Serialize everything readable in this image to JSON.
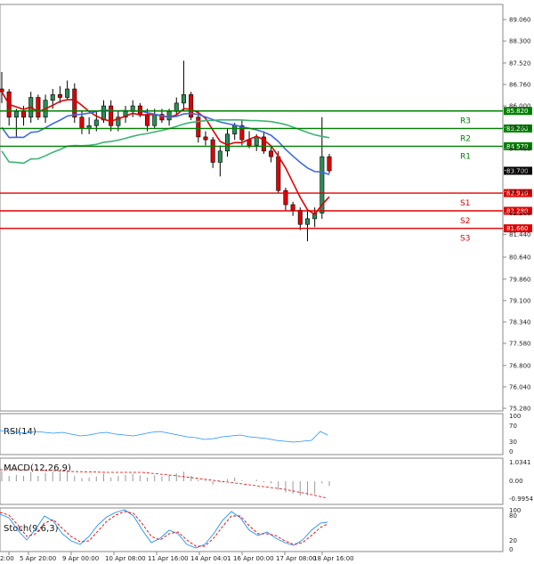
{
  "chart_data": {
    "type": "candlestick",
    "price_ticks": [
      "89.060",
      "88.300",
      "87.520",
      "86.760",
      "86.000",
      "85.240",
      "84.480",
      "83.720",
      "82.960",
      "82.200",
      "81.440",
      "80.640",
      "79.860",
      "79.100",
      "78.340",
      "77.580",
      "76.800",
      "76.040",
      "75.280"
    ],
    "price_range": [
      75.28,
      89.06
    ],
    "current_price": "83.700",
    "levels": [
      {
        "name": "R3",
        "value": 85.82,
        "label": "85.820",
        "color": "#008000"
      },
      {
        "name": "R2",
        "value": 85.2,
        "label": "85.200",
        "color": "#008000"
      },
      {
        "name": "R1",
        "value": 84.57,
        "label": "84.570",
        "color": "#008000"
      },
      {
        "name": "S1",
        "value": 82.91,
        "label": "82.910",
        "color": "#e00000"
      },
      {
        "name": "S2",
        "value": 82.28,
        "label": "82.280",
        "color": "#e00000"
      },
      {
        "name": "S3",
        "value": 81.66,
        "label": "81.660",
        "color": "#e00000"
      }
    ],
    "x_labels": [
      "2:00",
      "5 Apr 20:00",
      "9 Apr 00:00",
      "10 Apr 08:00",
      "11 Apr 16:00",
      "14 Apr 04:01",
      "16 Apr 00:00",
      "17 Apr 08:00",
      "18 Apr 16:00"
    ],
    "candles": [
      [
        86.6,
        87.2,
        86.1,
        86.5
      ],
      [
        86.5,
        86.6,
        85.3,
        85.6
      ],
      [
        85.6,
        85.9,
        84.9,
        85.8
      ],
      [
        85.8,
        86.0,
        85.3,
        85.6
      ],
      [
        85.6,
        86.5,
        85.4,
        86.3
      ],
      [
        86.3,
        86.4,
        85.5,
        85.6
      ],
      [
        85.6,
        86.4,
        85.4,
        86.2
      ],
      [
        86.2,
        86.6,
        85.9,
        86.4
      ],
      [
        86.4,
        86.7,
        86.1,
        86.3
      ],
      [
        86.3,
        86.9,
        86.2,
        86.6
      ],
      [
        86.6,
        86.8,
        85.4,
        85.6
      ],
      [
        85.6,
        85.8,
        85.0,
        85.2
      ],
      [
        85.2,
        85.6,
        85.0,
        85.3
      ],
      [
        85.3,
        85.8,
        85.1,
        85.5
      ],
      [
        85.5,
        86.2,
        85.4,
        86.0
      ],
      [
        86.0,
        86.2,
        85.1,
        85.3
      ],
      [
        85.3,
        85.8,
        85.1,
        85.6
      ],
      [
        85.6,
        86.0,
        85.4,
        85.8
      ],
      [
        85.8,
        86.2,
        85.6,
        86.0
      ],
      [
        86.0,
        86.1,
        85.6,
        85.7
      ],
      [
        85.7,
        85.9,
        85.1,
        85.3
      ],
      [
        85.3,
        85.9,
        85.2,
        85.7
      ],
      [
        85.7,
        85.9,
        85.4,
        85.5
      ],
      [
        85.5,
        85.9,
        85.3,
        85.8
      ],
      [
        85.8,
        86.3,
        85.7,
        86.1
      ],
      [
        86.1,
        87.6,
        85.8,
        86.4
      ],
      [
        86.4,
        86.5,
        85.5,
        85.6
      ],
      [
        85.6,
        85.8,
        84.7,
        84.9
      ],
      [
        84.9,
        85.1,
        84.6,
        84.8
      ],
      [
        84.8,
        84.9,
        83.8,
        84.0
      ],
      [
        84.0,
        84.6,
        83.5,
        84.4
      ],
      [
        84.4,
        85.2,
        84.2,
        85.0
      ],
      [
        85.0,
        85.4,
        84.8,
        85.3
      ],
      [
        85.3,
        85.5,
        84.6,
        84.8
      ],
      [
        84.8,
        85.1,
        84.5,
        84.6
      ],
      [
        84.6,
        85.0,
        84.4,
        84.9
      ],
      [
        84.9,
        85.1,
        84.3,
        84.4
      ],
      [
        84.4,
        84.6,
        84.0,
        84.2
      ],
      [
        84.2,
        84.4,
        82.9,
        83.0
      ],
      [
        83.0,
        83.1,
        82.3,
        82.5
      ],
      [
        82.5,
        82.6,
        82.1,
        82.3
      ],
      [
        82.3,
        82.4,
        81.6,
        81.8
      ],
      [
        81.8,
        82.3,
        81.2,
        82.0
      ],
      [
        82.0,
        82.4,
        81.7,
        82.2
      ],
      [
        82.2,
        85.6,
        82.0,
        84.2
      ],
      [
        84.2,
        84.3,
        83.6,
        83.7
      ]
    ]
  },
  "indicators": {
    "rsi": {
      "label": "RSI(14)",
      "ticks": [
        "100",
        "70",
        "30",
        "0"
      ]
    },
    "macd": {
      "label": "MACD(12,26,9)",
      "ticks": [
        "1.0341",
        "0.00",
        "-0.9954"
      ]
    },
    "stoch": {
      "label": "Stoch(9,6,3)",
      "ticks": [
        "100",
        "80",
        "20",
        "0"
      ]
    }
  }
}
